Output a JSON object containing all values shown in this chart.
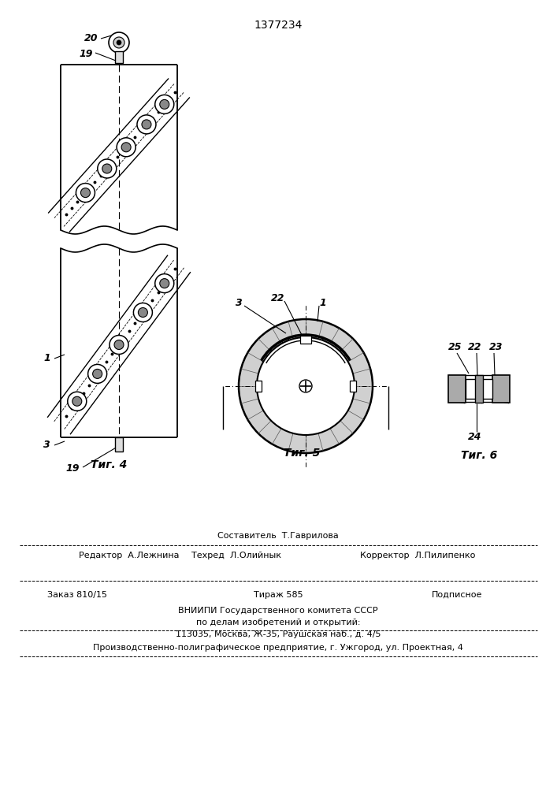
{
  "title_number": "1377234",
  "background_color": "#ffffff",
  "line_color": "#000000",
  "fig4_caption": "Τиг. 4",
  "fig5_caption": "Τиг. 5",
  "fig6_caption": "Τиг. 6",
  "footer_line1_left": "Редактор  А.Лежнина",
  "footer_line1_center": "Техред  Л.Олийнык",
  "footer_line1_right": "Корректор  Л.Пилипенко",
  "footer_line1_top": "Составитель  Т.Гаврилова",
  "footer_line2_left": "Заказ 810/15",
  "footer_line2_center": "Тираж 585",
  "footer_line2_right": "Подписное",
  "footer_line3": "ВНИИПИ Государственного комитета СССР",
  "footer_line4": "по делам изобретений и открытий:",
  "footer_line5": "113035, Москва, Ж-35, Раушская наб., д. 4/5",
  "footer_line6": "Производственно-полиграфическое предприятие, г. Ужгород, ул. Проектная, 4"
}
